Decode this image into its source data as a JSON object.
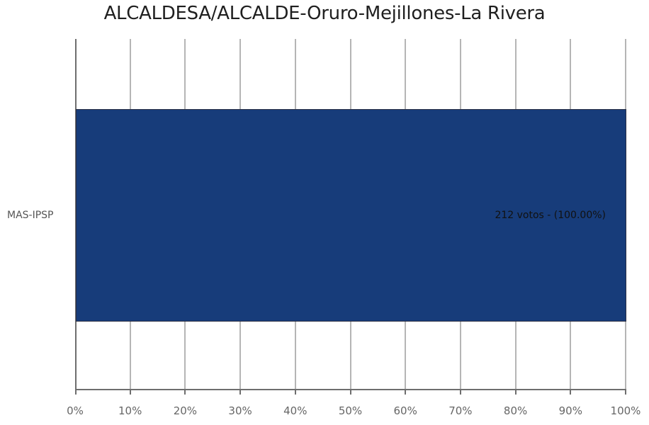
{
  "chart_data": {
    "type": "bar",
    "orientation": "horizontal",
    "title": "ALCALDESA/ALCALDE-Oruro-Mejillones-La Rivera",
    "categories": [
      "MAS-IPSP"
    ],
    "values": [
      100.0
    ],
    "votes": [
      212
    ],
    "data_labels": [
      "212 votos - (100.00%)"
    ],
    "xlabel": "",
    "ylabel": "",
    "xlim": [
      0,
      100
    ],
    "xticks": [
      "0%",
      "10%",
      "20%",
      "30%",
      "40%",
      "50%",
      "60%",
      "70%",
      "80%",
      "90%",
      "100%"
    ],
    "grid": true,
    "legend": null,
    "bar_color": "#173c7a"
  },
  "title": "ALCALDESA/ALCALDE-Oruro-Mejillones-La Rivera",
  "category_label": "MAS-IPSP",
  "bar_label": "212 votos - (100.00%)"
}
